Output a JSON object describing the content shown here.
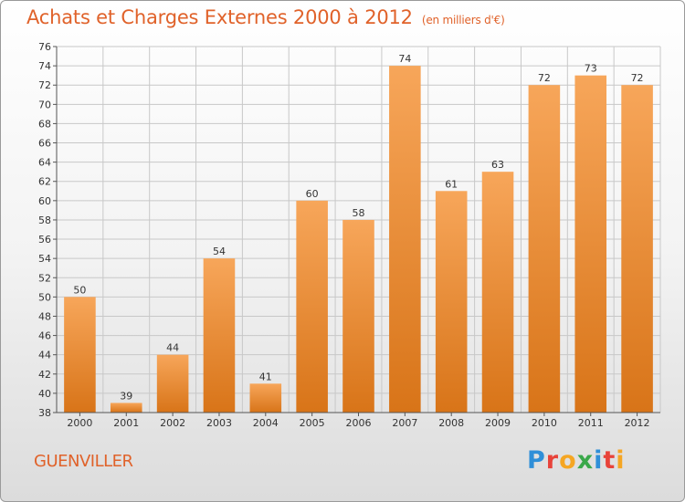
{
  "header": {
    "title": "Achats et Charges Externes 2000 à 2012",
    "subtitle": "(en milliers d'€)"
  },
  "footer": {
    "city": "GUENVILLER",
    "logo_letters": [
      {
        "ch": "P",
        "color": "#2f8fd8"
      },
      {
        "ch": "r",
        "color": "#e8433a"
      },
      {
        "ch": "o",
        "color": "#f5a623"
      },
      {
        "ch": "x",
        "color": "#3aa84a"
      },
      {
        "ch": "i",
        "color": "#2f8fd8"
      },
      {
        "ch": "t",
        "color": "#e8433a"
      },
      {
        "ch": "i",
        "color": "#f5a623"
      }
    ]
  },
  "colors": {
    "bar_top": "#f7a65a",
    "bar_bottom": "#d87418",
    "grid": "#c8c8c8",
    "accent": "#e0622a"
  },
  "chart_data": {
    "type": "bar",
    "title": "Achats et Charges Externes 2000 à 2012",
    "subtitle": "(en milliers d'€)",
    "categories": [
      "2000",
      "2001",
      "2002",
      "2003",
      "2004",
      "2005",
      "2006",
      "2007",
      "2008",
      "2009",
      "2010",
      "2011",
      "2012"
    ],
    "values": [
      50,
      39,
      44,
      54,
      41,
      60,
      58,
      74,
      61,
      63,
      72,
      73,
      72
    ],
    "ylim": [
      38,
      76
    ],
    "yticks": [
      38,
      40,
      42,
      44,
      46,
      48,
      50,
      52,
      54,
      56,
      58,
      60,
      62,
      64,
      66,
      68,
      70,
      72,
      74,
      76
    ],
    "grid": true,
    "xlabel": "",
    "ylabel": ""
  }
}
